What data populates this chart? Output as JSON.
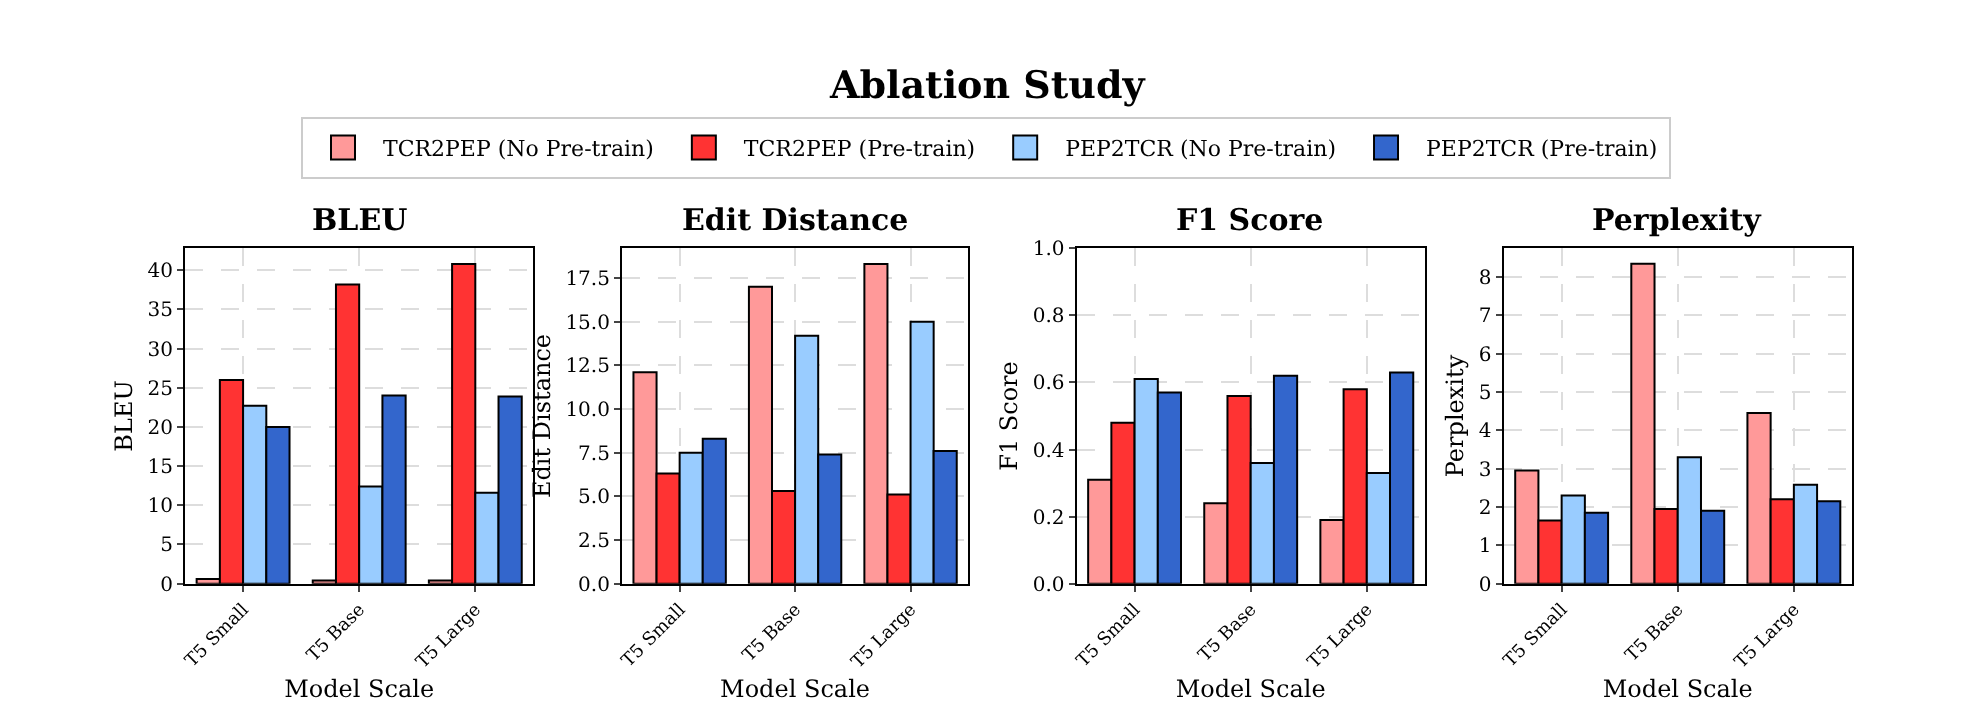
{
  "chart_data": [
    {
      "type": "bar",
      "title": "BLEU",
      "xlabel": "Model Scale",
      "ylabel": "BLEU",
      "annotations": [
        "Ablation Study"
      ],
      "categories": [
        "T5 Small",
        "T5 Base",
        "T5 Large"
      ],
      "series": [
        {
          "name": "TCR2PEP (No Pre-train)",
          "color": "#ff9999",
          "values": [
            0.6,
            0.4,
            0.4
          ]
        },
        {
          "name": "TCR2PEP (Pre-train)",
          "color": "#ff3333",
          "values": [
            26,
            38.2,
            40.8
          ]
        },
        {
          "name": "PEP2TCR (No Pre-train)",
          "color": "#99ccff",
          "values": [
            22.7,
            12.4,
            11.6
          ]
        },
        {
          "name": "PEP2TCR (Pre-train)",
          "color": "#3366cc",
          "values": [
            20,
            24,
            23.9
          ]
        }
      ],
      "ylim": [
        0,
        42.8
      ],
      "yticks": [
        0,
        5,
        10,
        15,
        20,
        25,
        30,
        35,
        40
      ],
      "grid": true,
      "legend": "top"
    },
    {
      "type": "bar",
      "title": "Edit Distance",
      "xlabel": "Model Scale",
      "ylabel": "Edit Distance",
      "categories": [
        "T5 Small",
        "T5 Base",
        "T5 Large"
      ],
      "series": [
        {
          "name": "TCR2PEP (No Pre-train)",
          "color": "#ff9999",
          "values": [
            12.1,
            17.0,
            18.3
          ]
        },
        {
          "name": "TCR2PEP (Pre-train)",
          "color": "#ff3333",
          "values": [
            6.3,
            5.3,
            5.1
          ]
        },
        {
          "name": "PEP2TCR (No Pre-train)",
          "color": "#99ccff",
          "values": [
            7.5,
            14.2,
            15.0
          ]
        },
        {
          "name": "PEP2TCR (Pre-train)",
          "color": "#3366cc",
          "values": [
            8.3,
            7.4,
            7.6
          ]
        }
      ],
      "ylim": [
        0,
        19.2
      ],
      "yticks": [
        {
          "value": 0,
          "label": "0.0"
        },
        {
          "value": 2.5,
          "label": "2.5"
        },
        {
          "value": 5,
          "label": "5.0"
        },
        {
          "value": 7.5,
          "label": "7.5"
        },
        {
          "value": 10,
          "label": "10.0"
        },
        {
          "value": 12.5,
          "label": "12.5"
        },
        {
          "value": 15,
          "label": "15.0"
        },
        {
          "value": 17.5,
          "label": "17.5"
        }
      ],
      "grid": true,
      "legend": "top"
    },
    {
      "type": "bar",
      "title": "F1 Score",
      "xlabel": "Model Scale",
      "ylabel": "F1 Score",
      "categories": [
        "T5 Small",
        "T5 Base",
        "T5 Large"
      ],
      "series": [
        {
          "name": "TCR2PEP (No Pre-train)",
          "color": "#ff9999",
          "values": [
            0.31,
            0.24,
            0.19
          ]
        },
        {
          "name": "TCR2PEP (Pre-train)",
          "color": "#ff3333",
          "values": [
            0.48,
            0.56,
            0.58
          ]
        },
        {
          "name": "PEP2TCR (No Pre-train)",
          "color": "#99ccff",
          "values": [
            0.61,
            0.36,
            0.33
          ]
        },
        {
          "name": "PEP2TCR (Pre-train)",
          "color": "#3366cc",
          "values": [
            0.57,
            0.62,
            0.63
          ]
        }
      ],
      "ylim": [
        0,
        1
      ],
      "yticks": [
        {
          "value": 0,
          "label": "0.0"
        },
        0.2,
        0.4,
        0.6,
        0.8,
        {
          "value": 1,
          "label": "1.0"
        }
      ],
      "grid": true,
      "legend": "top"
    },
    {
      "type": "bar",
      "title": "Perplexity",
      "xlabel": "Model Scale",
      "ylabel": "Perplexity",
      "categories": [
        "T5 Small",
        "T5 Base",
        "T5 Large"
      ],
      "series": [
        {
          "name": "TCR2PEP (No Pre-train)",
          "color": "#ff9999",
          "values": [
            2.95,
            8.35,
            4.45
          ]
        },
        {
          "name": "TCR2PEP (Pre-train)",
          "color": "#ff3333",
          "values": [
            1.65,
            1.95,
            2.2
          ]
        },
        {
          "name": "PEP2TCR (No Pre-train)",
          "color": "#99ccff",
          "values": [
            2.3,
            3.3,
            2.58
          ]
        },
        {
          "name": "PEP2TCR (Pre-train)",
          "color": "#3366cc",
          "values": [
            1.85,
            1.9,
            2.15
          ]
        }
      ],
      "ylim": [
        0,
        8.75
      ],
      "yticks": [
        0,
        1,
        2,
        3,
        4,
        5,
        6,
        7,
        8
      ],
      "grid": true,
      "legend": "top"
    }
  ]
}
